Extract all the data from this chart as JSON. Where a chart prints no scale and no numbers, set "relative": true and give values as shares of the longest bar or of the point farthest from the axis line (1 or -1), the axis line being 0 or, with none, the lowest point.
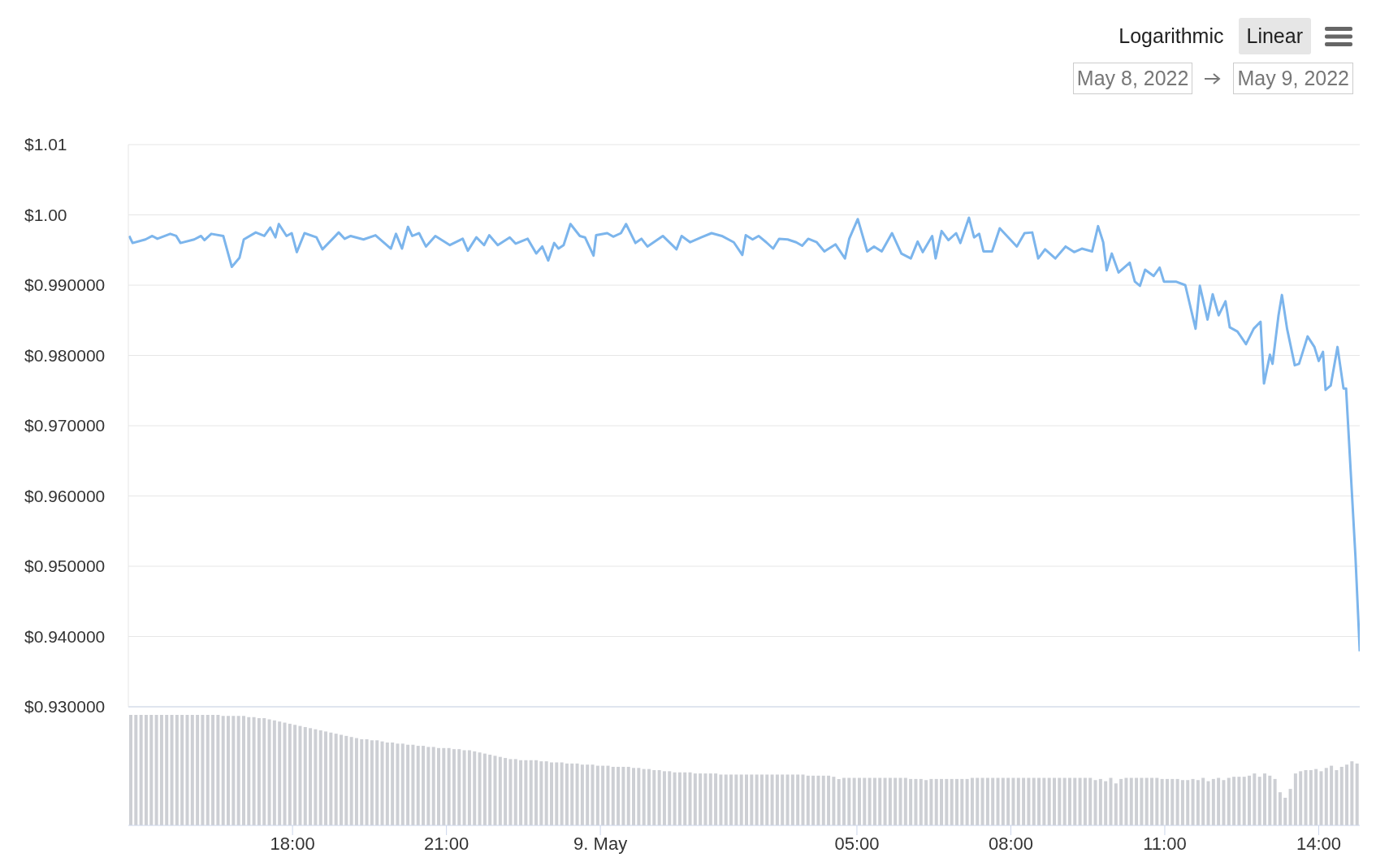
{
  "chart_data": [
    {
      "type": "line",
      "annotations": [
        "Logarithmic",
        "Linear",
        "May 8, 2022",
        "May 9, 2022"
      ],
      "xlim": [
        "2022-05-08T14:48",
        "2022-05-09T14:48"
      ],
      "ylim": [
        0.93,
        1.01
      ],
      "yticks": [
        {
          "value": 1.01,
          "label": "$1.01"
        },
        {
          "value": 1.0,
          "label": "$1.00"
        },
        {
          "value": 0.99,
          "label": "$0.990000"
        },
        {
          "value": 0.98,
          "label": "$0.980000"
        },
        {
          "value": 0.97,
          "label": "$0.970000"
        },
        {
          "value": 0.96,
          "label": "$0.960000"
        },
        {
          "value": 0.95,
          "label": "$0.950000"
        },
        {
          "value": 0.94,
          "label": "$0.940000"
        },
        {
          "value": 0.93,
          "label": "$0.930000"
        }
      ],
      "grid": "y",
      "tick_labels": "y",
      "series": [
        {
          "color": "#7cb5ec",
          "x": [
            "2022-05-08T14:49",
            "2022-05-08T14:53",
            "2022-05-08T15:08",
            "2022-05-08T15:16",
            "2022-05-08T15:22",
            "2022-05-08T15:37",
            "2022-05-08T15:44",
            "2022-05-08T15:49",
            "2022-05-08T16:05",
            "2022-05-08T16:13",
            "2022-05-08T16:17",
            "2022-05-08T16:25",
            "2022-05-08T16:39",
            "2022-05-08T16:49",
            "2022-05-08T16:58",
            "2022-05-08T17:03",
            "2022-05-08T17:17",
            "2022-05-08T17:27",
            "2022-05-08T17:34",
            "2022-05-08T17:40",
            "2022-05-08T17:44",
            "2022-05-08T17:53",
            "2022-05-08T17:59",
            "2022-05-08T18:05",
            "2022-05-08T18:14",
            "2022-05-08T18:28",
            "2022-05-08T18:35",
            "2022-05-08T18:47",
            "2022-05-08T18:54",
            "2022-05-08T19:01",
            "2022-05-08T19:08",
            "2022-05-08T19:23",
            "2022-05-08T19:37",
            "2022-05-08T19:55",
            "2022-05-08T20:01",
            "2022-05-08T20:08",
            "2022-05-08T20:15",
            "2022-05-08T20:20",
            "2022-05-08T20:28",
            "2022-05-08T20:36",
            "2022-05-08T20:47",
            "2022-05-08T21:04",
            "2022-05-08T21:19",
            "2022-05-08T21:25",
            "2022-05-08T21:35",
            "2022-05-08T21:44",
            "2022-05-08T21:50",
            "2022-05-08T22:00",
            "2022-05-08T22:14",
            "2022-05-08T22:21",
            "2022-05-08T22:35",
            "2022-05-08T22:45",
            "2022-05-08T22:52",
            "2022-05-08T22:59",
            "2022-05-08T23:06",
            "2022-05-08T23:11",
            "2022-05-08T23:17",
            "2022-05-08T23:25",
            "2022-05-08T23:36",
            "2022-05-08T23:42",
            "2022-05-08T23:52",
            "2022-05-08T23:55",
            "2022-05-09T00:08",
            "2022-05-09T00:15",
            "2022-05-09T00:24",
            "2022-05-09T00:30",
            "2022-05-09T00:41",
            "2022-05-09T00:48",
            "2022-05-09T00:55",
            "2022-05-09T01:13",
            "2022-05-09T01:24",
            "2022-05-09T01:29",
            "2022-05-09T01:35",
            "2022-05-09T01:45",
            "2022-05-09T01:58",
            "2022-05-09T02:10",
            "2022-05-09T02:22",
            "2022-05-09T02:36",
            "2022-05-09T02:46",
            "2022-05-09T02:50",
            "2022-05-09T02:58",
            "2022-05-09T03:05",
            "2022-05-09T03:14",
            "2022-05-09T03:22",
            "2022-05-09T03:29",
            "2022-05-09T03:39",
            "2022-05-09T03:49",
            "2022-05-09T03:56",
            "2022-05-09T04:03",
            "2022-05-09T04:13",
            "2022-05-09T04:22",
            "2022-05-09T04:35",
            "2022-05-09T04:46",
            "2022-05-09T04:51",
            "2022-05-09T05:01",
            "2022-05-09T05:12",
            "2022-05-09T05:20",
            "2022-05-09T05:29",
            "2022-05-09T05:41",
            "2022-05-09T05:52",
            "2022-05-09T06:03",
            "2022-05-09T06:11",
            "2022-05-09T06:17",
            "2022-05-09T06:28",
            "2022-05-09T06:32",
            "2022-05-09T06:39",
            "2022-05-09T06:47",
            "2022-05-09T06:56",
            "2022-05-09T07:01",
            "2022-05-09T07:11",
            "2022-05-09T07:17",
            "2022-05-09T07:23",
            "2022-05-09T07:28",
            "2022-05-09T07:38",
            "2022-05-09T07:47",
            "2022-05-09T07:57",
            "2022-05-09T08:07",
            "2022-05-09T08:16",
            "2022-05-09T08:25",
            "2022-05-09T08:32",
            "2022-05-09T08:40",
            "2022-05-09T08:52",
            "2022-05-09T09:04",
            "2022-05-09T09:14",
            "2022-05-09T09:23",
            "2022-05-09T09:35",
            "2022-05-09T09:42",
            "2022-05-09T09:48",
            "2022-05-09T09:52",
            "2022-05-09T09:58",
            "2022-05-09T10:06",
            "2022-05-09T10:19",
            "2022-05-09T10:25",
            "2022-05-09T10:31",
            "2022-05-09T10:37",
            "2022-05-09T10:47",
            "2022-05-09T10:54",
            "2022-05-09T10:59",
            "2022-05-09T11:13",
            "2022-05-09T11:24",
            "2022-05-09T11:36",
            "2022-05-09T11:41",
            "2022-05-09T11:50",
            "2022-05-09T11:56",
            "2022-05-09T12:03",
            "2022-05-09T12:11",
            "2022-05-09T12:16",
            "2022-05-09T12:25",
            "2022-05-09T12:35",
            "2022-05-09T12:44",
            "2022-05-09T12:52",
            "2022-05-09T12:56",
            "2022-05-09T13:03",
            "2022-05-09T13:06",
            "2022-05-09T13:13",
            "2022-05-09T13:17",
            "2022-05-09T13:23",
            "2022-05-09T13:32",
            "2022-05-09T13:37",
            "2022-05-09T13:47",
            "2022-05-09T13:55",
            "2022-05-09T14:00",
            "2022-05-09T14:05",
            "2022-05-09T14:08",
            "2022-05-09T14:14",
            "2022-05-09T14:22",
            "2022-05-09T14:29",
            "2022-05-09T14:32",
            "2022-05-09T14:43",
            "2022-05-09T14:48"
          ],
          "values": [
            0.997,
            0.996,
            0.9965,
            0.997,
            0.9966,
            0.9973,
            0.997,
            0.996,
            0.9965,
            0.997,
            0.9964,
            0.9973,
            0.997,
            0.9926,
            0.9939,
            0.9965,
            0.9975,
            0.997,
            0.9982,
            0.9968,
            0.9987,
            0.997,
            0.9974,
            0.9947,
            0.9974,
            0.9968,
            0.9951,
            0.9966,
            0.9975,
            0.9966,
            0.997,
            0.9965,
            0.9971,
            0.9952,
            0.9973,
            0.9952,
            0.9983,
            0.997,
            0.9974,
            0.9955,
            0.997,
            0.9957,
            0.9966,
            0.9949,
            0.9968,
            0.9957,
            0.9971,
            0.9957,
            0.9968,
            0.9959,
            0.9966,
            0.9945,
            0.9955,
            0.9935,
            0.996,
            0.9952,
            0.9957,
            0.9987,
            0.997,
            0.9968,
            0.9942,
            0.9971,
            0.9974,
            0.9969,
            0.9974,
            0.9987,
            0.996,
            0.9966,
            0.9955,
            0.997,
            0.9957,
            0.9951,
            0.997,
            0.9961,
            0.9968,
            0.9974,
            0.997,
            0.9961,
            0.9943,
            0.9971,
            0.9965,
            0.997,
            0.9961,
            0.9952,
            0.9966,
            0.9965,
            0.9961,
            0.9956,
            0.9966,
            0.9961,
            0.9948,
            0.9958,
            0.9938,
            0.9966,
            0.9994,
            0.9948,
            0.9955,
            0.9948,
            0.9974,
            0.9945,
            0.9938,
            0.9962,
            0.9947,
            0.997,
            0.9938,
            0.9977,
            0.9964,
            0.9974,
            0.996,
            0.9996,
            0.9968,
            0.9973,
            0.9948,
            0.9948,
            0.9981,
            0.9968,
            0.9955,
            0.9974,
            0.9975,
            0.9938,
            0.9951,
            0.9938,
            0.9955,
            0.9947,
            0.9952,
            0.9948,
            0.9984,
            0.9961,
            0.9921,
            0.9945,
            0.9918,
            0.9932,
            0.9905,
            0.9899,
            0.9922,
            0.9913,
            0.9925,
            0.9905,
            0.9905,
            0.99,
            0.9838,
            0.9899,
            0.9851,
            0.9887,
            0.9857,
            0.9877,
            0.984,
            0.9834,
            0.9816,
            0.9838,
            0.9848,
            0.976,
            0.9801,
            0.9788,
            0.9857,
            0.9886,
            0.9838,
            0.9786,
            0.9788,
            0.9827,
            0.9812,
            0.9792,
            0.9805,
            0.9751,
            0.9757,
            0.9812,
            0.9753,
            0.9753,
            0.9513,
            0.9379
          ]
        }
      ]
    },
    {
      "type": "bar",
      "relative": true,
      "xlim": [
        "2022-05-08T14:48",
        "2022-05-09T14:48"
      ],
      "tick_labels": "x",
      "xticks": [
        {
          "value": "2022-05-08T18:00",
          "label": "18:00"
        },
        {
          "value": "2022-05-08T21:00",
          "label": "21:00"
        },
        {
          "value": "2022-05-09T00:00",
          "label": "9. May"
        },
        {
          "value": "2022-05-09T05:00",
          "label": "05:00"
        },
        {
          "value": "2022-05-09T08:00",
          "label": "08:00"
        },
        {
          "value": "2022-05-09T11:00",
          "label": "11:00"
        },
        {
          "value": "2022-05-09T14:00",
          "label": "14:00"
        }
      ],
      "series": [
        {
          "color": "#cdcfd4",
          "x": [
            "2022-05-08T14:51",
            "2022-05-08T14:57",
            "2022-05-08T15:03",
            "2022-05-08T15:09",
            "2022-05-08T15:15",
            "2022-05-08T15:21",
            "2022-05-08T15:27",
            "2022-05-08T15:33",
            "2022-05-08T15:39",
            "2022-05-08T15:45",
            "2022-05-08T15:51",
            "2022-05-08T15:57",
            "2022-05-08T16:03",
            "2022-05-08T16:09",
            "2022-05-08T16:15",
            "2022-05-08T16:21",
            "2022-05-08T16:27",
            "2022-05-08T16:33",
            "2022-05-08T16:39",
            "2022-05-08T16:45",
            "2022-05-08T16:51",
            "2022-05-08T16:57",
            "2022-05-08T17:03",
            "2022-05-08T17:09",
            "2022-05-08T17:15",
            "2022-05-08T17:21",
            "2022-05-08T17:27",
            "2022-05-08T17:33",
            "2022-05-08T17:39",
            "2022-05-08T17:45",
            "2022-05-08T17:51",
            "2022-05-08T17:57",
            "2022-05-08T18:03",
            "2022-05-08T18:09",
            "2022-05-08T18:15",
            "2022-05-08T18:21",
            "2022-05-08T18:27",
            "2022-05-08T18:33",
            "2022-05-08T18:39",
            "2022-05-08T18:45",
            "2022-05-08T18:51",
            "2022-05-08T18:57",
            "2022-05-08T19:03",
            "2022-05-08T19:09",
            "2022-05-08T19:15",
            "2022-05-08T19:21",
            "2022-05-08T19:27",
            "2022-05-08T19:33",
            "2022-05-08T19:39",
            "2022-05-08T19:45",
            "2022-05-08T19:51",
            "2022-05-08T19:57",
            "2022-05-08T20:03",
            "2022-05-08T20:09",
            "2022-05-08T20:15",
            "2022-05-08T20:21",
            "2022-05-08T20:27",
            "2022-05-08T20:33",
            "2022-05-08T20:39",
            "2022-05-08T20:45",
            "2022-05-08T20:51",
            "2022-05-08T20:57",
            "2022-05-08T21:03",
            "2022-05-08T21:09",
            "2022-05-08T21:15",
            "2022-05-08T21:21",
            "2022-05-08T21:27",
            "2022-05-08T21:33",
            "2022-05-08T21:39",
            "2022-05-08T21:45",
            "2022-05-08T21:51",
            "2022-05-08T21:57",
            "2022-05-08T22:03",
            "2022-05-08T22:09",
            "2022-05-08T22:15",
            "2022-05-08T22:21",
            "2022-05-08T22:27",
            "2022-05-08T22:33",
            "2022-05-08T22:39",
            "2022-05-08T22:45",
            "2022-05-08T22:51",
            "2022-05-08T22:57",
            "2022-05-08T23:03",
            "2022-05-08T23:09",
            "2022-05-08T23:15",
            "2022-05-08T23:21",
            "2022-05-08T23:27",
            "2022-05-08T23:33",
            "2022-05-08T23:39",
            "2022-05-08T23:45",
            "2022-05-08T23:51",
            "2022-05-08T23:57",
            "2022-05-09T00:03",
            "2022-05-09T00:09",
            "2022-05-09T00:15",
            "2022-05-09T00:21",
            "2022-05-09T00:27",
            "2022-05-09T00:33",
            "2022-05-09T00:39",
            "2022-05-09T00:45",
            "2022-05-09T00:51",
            "2022-05-09T00:57",
            "2022-05-09T01:03",
            "2022-05-09T01:09",
            "2022-05-09T01:15",
            "2022-05-09T01:21",
            "2022-05-09T01:27",
            "2022-05-09T01:33",
            "2022-05-09T01:39",
            "2022-05-09T01:45",
            "2022-05-09T01:51",
            "2022-05-09T01:57",
            "2022-05-09T02:03",
            "2022-05-09T02:09",
            "2022-05-09T02:15",
            "2022-05-09T02:21",
            "2022-05-09T02:27",
            "2022-05-09T02:33",
            "2022-05-09T02:39",
            "2022-05-09T02:45",
            "2022-05-09T02:51",
            "2022-05-09T02:57",
            "2022-05-09T03:03",
            "2022-05-09T03:09",
            "2022-05-09T03:15",
            "2022-05-09T03:21",
            "2022-05-09T03:27",
            "2022-05-09T03:33",
            "2022-05-09T03:39",
            "2022-05-09T03:45",
            "2022-05-09T03:51",
            "2022-05-09T03:57",
            "2022-05-09T04:03",
            "2022-05-09T04:09",
            "2022-05-09T04:15",
            "2022-05-09T04:21",
            "2022-05-09T04:27",
            "2022-05-09T04:33",
            "2022-05-09T04:39",
            "2022-05-09T04:45",
            "2022-05-09T04:51",
            "2022-05-09T04:57",
            "2022-05-09T05:03",
            "2022-05-09T05:09",
            "2022-05-09T05:15",
            "2022-05-09T05:21",
            "2022-05-09T05:27",
            "2022-05-09T05:33",
            "2022-05-09T05:39",
            "2022-05-09T05:45",
            "2022-05-09T05:51",
            "2022-05-09T05:57",
            "2022-05-09T06:03",
            "2022-05-09T06:09",
            "2022-05-09T06:15",
            "2022-05-09T06:21",
            "2022-05-09T06:27",
            "2022-05-09T06:33",
            "2022-05-09T06:39",
            "2022-05-09T06:45",
            "2022-05-09T06:51",
            "2022-05-09T06:57",
            "2022-05-09T07:03",
            "2022-05-09T07:09",
            "2022-05-09T07:15",
            "2022-05-09T07:21",
            "2022-05-09T07:27",
            "2022-05-09T07:33",
            "2022-05-09T07:39",
            "2022-05-09T07:45",
            "2022-05-09T07:51",
            "2022-05-09T07:57",
            "2022-05-09T08:03",
            "2022-05-09T08:09",
            "2022-05-09T08:15",
            "2022-05-09T08:21",
            "2022-05-09T08:27",
            "2022-05-09T08:33",
            "2022-05-09T08:39",
            "2022-05-09T08:45",
            "2022-05-09T08:51",
            "2022-05-09T08:57",
            "2022-05-09T09:03",
            "2022-05-09T09:09",
            "2022-05-09T09:15",
            "2022-05-09T09:21",
            "2022-05-09T09:27",
            "2022-05-09T09:33",
            "2022-05-09T09:39",
            "2022-05-09T09:45",
            "2022-05-09T09:51",
            "2022-05-09T09:57",
            "2022-05-09T10:03",
            "2022-05-09T10:09",
            "2022-05-09T10:15",
            "2022-05-09T10:21",
            "2022-05-09T10:27",
            "2022-05-09T10:33",
            "2022-05-09T10:39",
            "2022-05-09T10:45",
            "2022-05-09T10:51",
            "2022-05-09T10:57",
            "2022-05-09T11:03",
            "2022-05-09T11:09",
            "2022-05-09T11:15",
            "2022-05-09T11:21",
            "2022-05-09T11:27",
            "2022-05-09T11:33",
            "2022-05-09T11:39",
            "2022-05-09T11:45",
            "2022-05-09T11:51",
            "2022-05-09T11:57",
            "2022-05-09T12:03",
            "2022-05-09T12:09",
            "2022-05-09T12:15",
            "2022-05-09T12:21",
            "2022-05-09T12:27",
            "2022-05-09T12:33",
            "2022-05-09T12:39",
            "2022-05-09T12:45",
            "2022-05-09T12:51",
            "2022-05-09T12:57",
            "2022-05-09T13:03",
            "2022-05-09T13:09",
            "2022-05-09T13:15",
            "2022-05-09T13:21",
            "2022-05-09T13:27",
            "2022-05-09T13:33",
            "2022-05-09T13:39",
            "2022-05-09T13:45",
            "2022-05-09T13:51",
            "2022-05-09T13:57",
            "2022-05-09T14:03",
            "2022-05-09T14:09",
            "2022-05-09T14:15",
            "2022-05-09T14:21",
            "2022-05-09T14:27",
            "2022-05-09T14:33",
            "2022-05-09T14:39",
            "2022-05-09T14:45"
          ],
          "values": [
            1,
            1,
            1,
            1,
            1,
            1,
            1,
            1,
            1,
            1,
            1,
            1,
            1,
            1,
            1,
            1,
            1,
            1,
            0.99,
            0.99,
            0.99,
            0.99,
            0.99,
            0.98,
            0.98,
            0.97,
            0.97,
            0.96,
            0.95,
            0.94,
            0.93,
            0.92,
            0.91,
            0.9,
            0.89,
            0.88,
            0.87,
            0.86,
            0.85,
            0.84,
            0.83,
            0.82,
            0.81,
            0.8,
            0.79,
            0.78,
            0.78,
            0.77,
            0.77,
            0.76,
            0.75,
            0.75,
            0.74,
            0.74,
            0.73,
            0.73,
            0.72,
            0.72,
            0.71,
            0.71,
            0.7,
            0.7,
            0.7,
            0.69,
            0.69,
            0.68,
            0.68,
            0.67,
            0.66,
            0.65,
            0.64,
            0.63,
            0.62,
            0.61,
            0.6,
            0.6,
            0.59,
            0.59,
            0.59,
            0.59,
            0.58,
            0.58,
            0.57,
            0.57,
            0.57,
            0.56,
            0.56,
            0.56,
            0.55,
            0.55,
            0.55,
            0.54,
            0.54,
            0.54,
            0.53,
            0.53,
            0.53,
            0.53,
            0.52,
            0.52,
            0.51,
            0.51,
            0.5,
            0.5,
            0.49,
            0.49,
            0.48,
            0.48,
            0.48,
            0.48,
            0.47,
            0.47,
            0.47,
            0.47,
            0.47,
            0.46,
            0.46,
            0.46,
            0.46,
            0.46,
            0.46,
            0.46,
            0.46,
            0.46,
            0.46,
            0.46,
            0.46,
            0.46,
            0.46,
            0.46,
            0.46,
            0.46,
            0.45,
            0.45,
            0.45,
            0.45,
            0.45,
            0.44,
            0.42,
            0.43,
            0.43,
            0.43,
            0.43,
            0.43,
            0.43,
            0.43,
            0.43,
            0.43,
            0.43,
            0.43,
            0.43,
            0.43,
            0.42,
            0.42,
            0.42,
            0.41,
            0.42,
            0.42,
            0.42,
            0.42,
            0.42,
            0.42,
            0.42,
            0.42,
            0.43,
            0.43,
            0.43,
            0.43,
            0.43,
            0.43,
            0.43,
            0.43,
            0.43,
            0.43,
            0.43,
            0.43,
            0.43,
            0.43,
            0.43,
            0.43,
            0.43,
            0.43,
            0.43,
            0.43,
            0.43,
            0.43,
            0.43,
            0.43,
            0.41,
            0.42,
            0.4,
            0.43,
            0.38,
            0.42,
            0.43,
            0.43,
            0.43,
            0.43,
            0.43,
            0.43,
            0.43,
            0.42,
            0.42,
            0.42,
            0.42,
            0.41,
            0.41,
            0.42,
            0.41,
            0.43,
            0.4,
            0.42,
            0.43,
            0.41,
            0.43,
            0.44,
            0.44,
            0.44,
            0.45,
            0.47,
            0.44,
            0.47,
            0.45,
            0.42,
            0.3,
            0.25,
            0.33,
            0.47,
            0.49,
            0.5,
            0.5,
            0.51,
            0.49,
            0.52,
            0.54,
            0.5,
            0.53,
            0.55,
            0.58,
            0.56
          ]
        }
      ]
    }
  ]
}
